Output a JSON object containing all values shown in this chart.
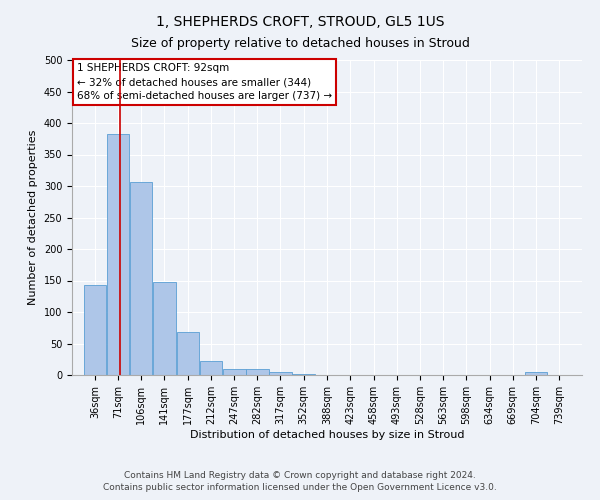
{
  "title": "1, SHEPHERDS CROFT, STROUD, GL5 1US",
  "subtitle": "Size of property relative to detached houses in Stroud",
  "xlabel": "Distribution of detached houses by size in Stroud",
  "ylabel": "Number of detached properties",
  "bin_labels": [
    "36sqm",
    "71sqm",
    "106sqm",
    "141sqm",
    "177sqm",
    "212sqm",
    "247sqm",
    "282sqm",
    "317sqm",
    "352sqm",
    "388sqm",
    "423sqm",
    "458sqm",
    "493sqm",
    "528sqm",
    "563sqm",
    "598sqm",
    "634sqm",
    "669sqm",
    "704sqm",
    "739sqm"
  ],
  "bin_edges": [
    36,
    71,
    106,
    141,
    177,
    212,
    247,
    282,
    317,
    352,
    388,
    423,
    458,
    493,
    528,
    563,
    598,
    634,
    669,
    704,
    739
  ],
  "bar_heights": [
    143,
    383,
    307,
    148,
    69,
    22,
    10,
    10,
    5,
    2,
    0,
    0,
    0,
    0,
    0,
    0,
    0,
    0,
    0,
    4,
    0
  ],
  "bar_color": "#aec6e8",
  "bar_edge_color": "#5a9fd4",
  "property_line_x": 92,
  "annotation_line1": "1 SHEPHERDS CROFT: 92sqm",
  "annotation_line2": "← 32% of detached houses are smaller (344)",
  "annotation_line3": "68% of semi-detached houses are larger (737) →",
  "annotation_box_color": "#ffffff",
  "annotation_box_edge_color": "#cc0000",
  "red_line_color": "#cc0000",
  "ylim": [
    0,
    500
  ],
  "yticks": [
    0,
    50,
    100,
    150,
    200,
    250,
    300,
    350,
    400,
    450,
    500
  ],
  "footer_line1": "Contains HM Land Registry data © Crown copyright and database right 2024.",
  "footer_line2": "Contains public sector information licensed under the Open Government Licence v3.0.",
  "bg_color": "#eef2f8",
  "plot_bg_color": "#eef2f8",
  "grid_color": "#ffffff",
  "title_fontsize": 10,
  "subtitle_fontsize": 9,
  "axis_label_fontsize": 8,
  "tick_fontsize": 7,
  "annotation_fontsize": 7.5,
  "footer_fontsize": 6.5
}
